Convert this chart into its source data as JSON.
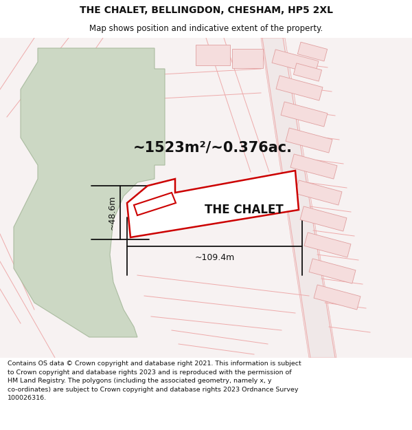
{
  "title": "THE CHALET, BELLINGDON, CHESHAM, HP5 2XL",
  "subtitle": "Map shows position and indicative extent of the property.",
  "footer": "Contains OS data © Crown copyright and database right 2021. This information is subject\nto Crown copyright and database rights 2023 and is reproduced with the permission of\nHM Land Registry. The polygons (including the associated geometry, namely x, y\nco-ordinates) are subject to Crown copyright and database rights 2023 Ordnance Survey\n100026316.",
  "area_label": "~1523m²/~0.376ac.",
  "property_label": "THE CHALET",
  "dim_width": "~109.4m",
  "dim_height": "~48.6m",
  "bg_color": "#ffffff",
  "map_bg": "#f7f2f2",
  "green_fill": "#ccd8c4",
  "green_edge": "#aabca0",
  "plot_fill": "#ffffff",
  "plot_outline_color": "#cc0000",
  "road_line_color": "#eeaaaa",
  "bldg_fill": "#f5dddd",
  "bldg_edge": "#e0a0a0",
  "dim_color": "#111111",
  "text_color": "#111111",
  "title_fontsize": 10,
  "subtitle_fontsize": 8.5,
  "footer_fontsize": 6.8,
  "area_fontsize": 15,
  "prop_fontsize": 12,
  "dim_fontsize": 9
}
